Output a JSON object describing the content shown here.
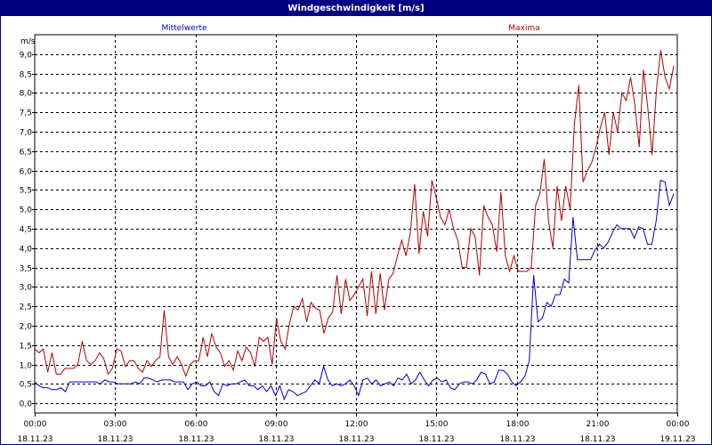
{
  "window": {
    "title": "Windgeschwindigkeit [m/s]"
  },
  "chart_data": {
    "type": "line",
    "title": "Windgeschwindigkeit [m/s]",
    "ylabel": "m/s",
    "xlabel": "",
    "ylim": [
      -0.25,
      9.5
    ],
    "xlim": [
      "18.11.23 00:00",
      "19.11.23 00:00"
    ],
    "grid": true,
    "legend_placement": "top",
    "x_ticks": [
      {
        "time": "00:00",
        "date": "18.11.23"
      },
      {
        "time": "03:00",
        "date": "18.11.23"
      },
      {
        "time": "06:00",
        "date": "18.11.23"
      },
      {
        "time": "09:00",
        "date": "18.11.23"
      },
      {
        "time": "12:00",
        "date": "18.11.23"
      },
      {
        "time": "15:00",
        "date": "18.11.23"
      },
      {
        "time": "18:00",
        "date": "18.11.23"
      },
      {
        "time": "21:00",
        "date": "18.11.23"
      },
      {
        "time": "00:00",
        "date": "19.11.23"
      }
    ],
    "y_ticks": [
      "0,0",
      "0,5",
      "1,0",
      "1,5",
      "2,0",
      "2,5",
      "3,0",
      "3,5",
      "4,0",
      "4,5",
      "5,0",
      "5,5",
      "6,0",
      "6,5",
      "7,0",
      "7,5",
      "8,0",
      "8,5",
      "9,0"
    ],
    "y_tick_values": [
      0,
      0.5,
      1,
      1.5,
      2,
      2.5,
      3,
      3.5,
      4,
      4.5,
      5,
      5.5,
      6,
      6.5,
      7,
      7.5,
      8,
      8.5,
      9
    ],
    "sample_interval": "10 min",
    "series": [
      {
        "name": "Mittelwerte",
        "color": "#0000c0",
        "values": [
          0.55,
          0.45,
          0.4,
          0.4,
          0.35,
          0.35,
          0.4,
          0.3,
          0.55,
          0.55,
          0.55,
          0.55,
          0.55,
          0.55,
          0.55,
          0.5,
          0.6,
          0.55,
          0.55,
          0.5,
          0.5,
          0.5,
          0.5,
          0.55,
          0.5,
          0.65,
          0.65,
          0.6,
          0.55,
          0.6,
          0.6,
          0.6,
          0.55,
          0.55,
          0.55,
          0.35,
          0.5,
          0.55,
          0.45,
          0.45,
          0.55,
          0.3,
          0.2,
          0.5,
          0.45,
          0.5,
          0.5,
          0.55,
          0.6,
          0.45,
          0.45,
          0.35,
          0.45,
          0.3,
          0.45,
          0.2,
          0.45,
          0.1,
          0.35,
          0.3,
          0.2,
          0.25,
          0.3,
          0.45,
          0.6,
          0.5,
          0.95,
          0.6,
          0.45,
          0.5,
          0.45,
          0.5,
          0.6,
          0.45,
          0.2,
          0.6,
          0.65,
          0.5,
          0.6,
          0.45,
          0.5,
          0.55,
          0.45,
          0.65,
          0.6,
          0.75,
          0.5,
          0.6,
          0.8,
          0.6,
          0.45,
          0.6,
          0.65,
          0.55,
          0.6,
          0.4,
          0.35,
          0.5,
          0.55,
          0.55,
          0.5,
          0.6,
          0.8,
          0.75,
          0.5,
          0.55,
          0.85,
          0.85,
          0.75,
          0.55,
          0.45,
          0.55,
          0.7,
          1.1,
          3.3,
          2.1,
          2.2,
          2.6,
          2.5,
          2.8,
          2.8,
          3.2,
          3.1,
          4.8,
          3.7,
          3.7,
          3.7,
          3.7,
          3.95,
          4.1,
          4.0,
          4.15,
          4.4,
          4.6,
          4.5,
          4.5,
          4.5,
          4.25,
          4.55,
          4.5,
          4.1,
          4.1,
          4.7,
          5.75,
          5.7,
          5.1,
          5.4
        ]
      },
      {
        "name": "Maxima",
        "color": "#b00000",
        "values": [
          1.4,
          1.3,
          1.4,
          0.8,
          1.3,
          0.75,
          0.75,
          0.9,
          0.9,
          0.9,
          1.0,
          1.6,
          1.1,
          1.0,
          1.1,
          1.3,
          1.15,
          0.75,
          0.9,
          1.4,
          1.35,
          0.95,
          1.1,
          1.1,
          0.9,
          0.8,
          1.1,
          0.95,
          1.1,
          1.2,
          2.4,
          1.2,
          1.0,
          1.2,
          1.0,
          0.7,
          1.0,
          1.1,
          1.1,
          1.7,
          1.2,
          1.8,
          1.45,
          1.3,
          0.95,
          1.1,
          0.85,
          1.35,
          1.1,
          1.45,
          1.3,
          0.95,
          1.7,
          1.6,
          1.7,
          1.0,
          2.2,
          1.6,
          1.4,
          2.05,
          2.5,
          2.4,
          2.7,
          2.1,
          2.6,
          2.45,
          2.4,
          1.8,
          2.2,
          2.35,
          3.3,
          2.3,
          3.2,
          2.65,
          2.8,
          3.0,
          3.2,
          2.25,
          3.4,
          2.3,
          3.35,
          2.4,
          3.2,
          3.35,
          3.8,
          4.2,
          3.8,
          4.4,
          5.65,
          3.85,
          4.95,
          4.3,
          5.75,
          5.3,
          4.8,
          4.6,
          5.0,
          4.5,
          4.2,
          3.5,
          3.5,
          4.5,
          4.3,
          3.3,
          5.1,
          4.8,
          4.6,
          3.9,
          5.45,
          3.8,
          3.4,
          3.8,
          3.4,
          3.4,
          3.4,
          3.5,
          5.1,
          5.4,
          6.3,
          4.7,
          4.0,
          5.6,
          4.7,
          5.6,
          5.0,
          7.2,
          8.2,
          5.7,
          6.0,
          6.2,
          6.6,
          7.1,
          7.5,
          6.4,
          7.5,
          7.0,
          8.0,
          7.8,
          8.4,
          7.7,
          6.6,
          8.6,
          7.6,
          6.4,
          8.1,
          9.1,
          8.4,
          8.1,
          8.7
        ]
      }
    ]
  }
}
